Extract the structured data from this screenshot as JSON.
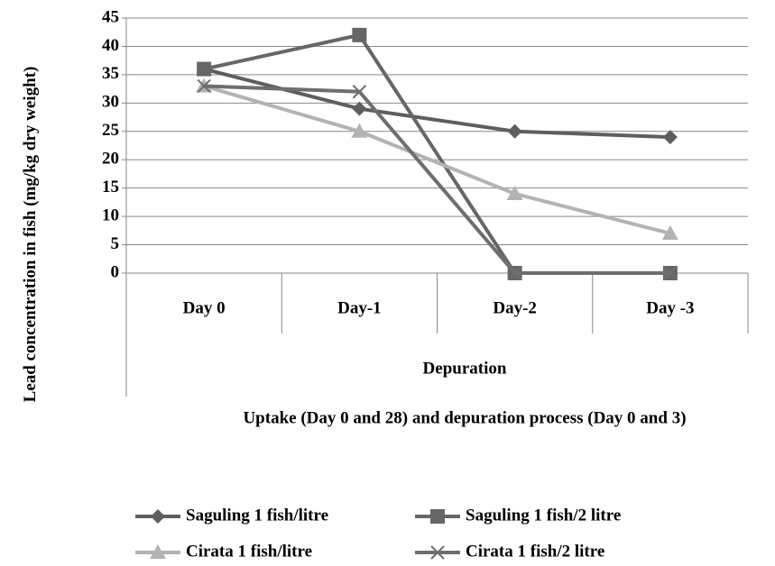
{
  "chart_data": {
    "type": "line",
    "y_label": "Lead  concentration in fish (mg/kg dry weight)",
    "x_label": "Uptake (Day 0 and 28) and depuration process (Day 0 and 3)",
    "group_label": "Depuration",
    "categories": [
      "Day 0",
      "Day-1",
      "Day-2",
      "Day -3"
    ],
    "series": [
      {
        "name": "Saguling 1 fish/litre",
        "color": "#5e5e5e",
        "marker": "diamond",
        "values": [
          36,
          29,
          25,
          24
        ]
      },
      {
        "name": "Saguling 1 fish/2 litre",
        "color": "#666666",
        "marker": "square",
        "values": [
          36,
          42,
          0,
          0
        ]
      },
      {
        "name": "Cirata 1 fish/litre",
        "color": "#b3b3b3",
        "marker": "triangle",
        "values": [
          33,
          25,
          14,
          7
        ]
      },
      {
        "name": "Cirata 1 fish/2 litre",
        "color": "#6e6e6e",
        "marker": "x",
        "values": [
          33,
          32,
          0,
          0
        ]
      }
    ],
    "ylim": [
      0,
      45
    ],
    "yticks": [
      0,
      5,
      10,
      15,
      20,
      25,
      30,
      35,
      40,
      45
    ],
    "grid": true
  }
}
